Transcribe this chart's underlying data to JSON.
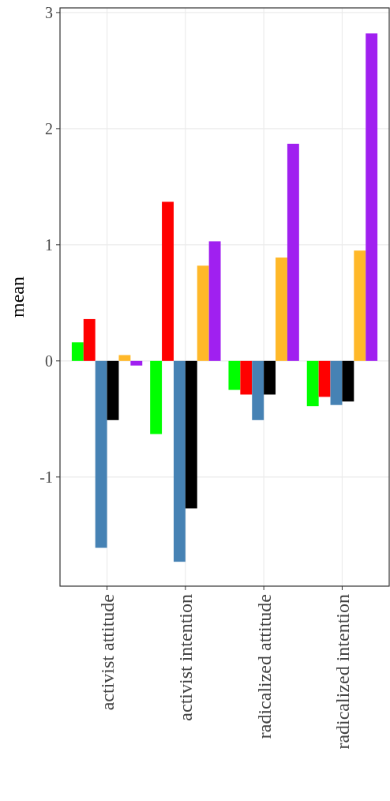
{
  "chart_data": {
    "type": "bar",
    "ylabel": "mean",
    "categories": [
      "activist attitude",
      "activist intention",
      "radicalized attitude",
      "radicalized intention"
    ],
    "series": [
      {
        "color": "#00ff00",
        "values": [
          0.16,
          -0.63,
          -0.25,
          -0.39
        ]
      },
      {
        "color": "#ff0000",
        "values": [
          0.36,
          1.37,
          -0.29,
          -0.31
        ]
      },
      {
        "color": "#4682b4",
        "values": [
          -1.61,
          -1.73,
          -0.51,
          -0.38
        ]
      },
      {
        "color": "#000000",
        "values": [
          -0.51,
          -1.27,
          -0.29,
          -0.35
        ]
      },
      {
        "color": "#ffb829",
        "values": [
          0.05,
          0.82,
          0.89,
          0.95
        ]
      },
      {
        "color": "#a020f0",
        "values": [
          -0.04,
          1.03,
          1.87,
          2.82
        ]
      }
    ],
    "ylim": [
      -1.94,
      3.04
    ],
    "yticks": [
      -1,
      0,
      1,
      2,
      3
    ],
    "grid": true
  }
}
